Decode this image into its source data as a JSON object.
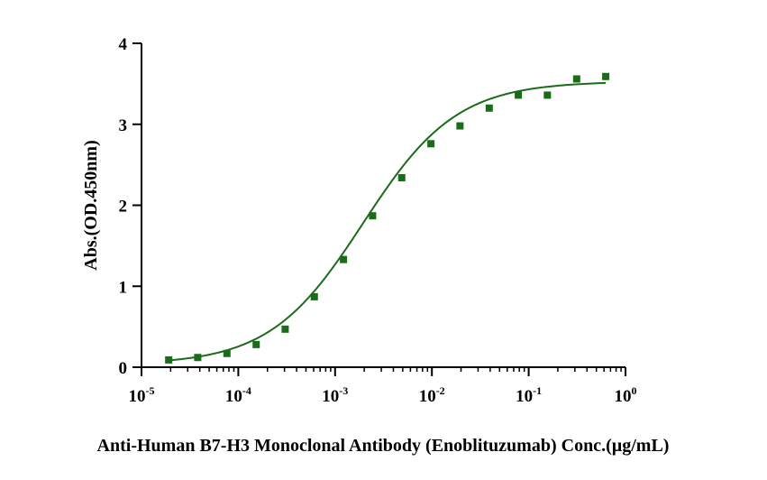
{
  "chart_data": {
    "type": "scatter",
    "title": "",
    "xlabel": "Anti-Human B7-H3 Monoclonal Antibody (Enoblituzumab) Conc.(µg/mL)",
    "ylabel": "Abs.(OD.450nm)",
    "xscale": "log10",
    "xlim_log10": [
      -5,
      0
    ],
    "ylim": [
      0,
      4
    ],
    "x_ticks": [
      {
        "base": "10",
        "exp": "-5"
      },
      {
        "base": "10",
        "exp": "-4"
      },
      {
        "base": "10",
        "exp": "-3"
      },
      {
        "base": "10",
        "exp": "-2"
      },
      {
        "base": "10",
        "exp": "-1"
      },
      {
        "base": "10",
        "exp": "0"
      }
    ],
    "y_ticks": [
      "0",
      "1",
      "2",
      "3",
      "4"
    ],
    "grid": false,
    "series": [
      {
        "name": "Enoblituzumab",
        "color": "#1a6b1a",
        "marker": "square",
        "x": [
          1.91e-05,
          3.81e-05,
          7.63e-05,
          0.000153,
          0.000305,
          0.00061,
          0.00122,
          0.00244,
          0.00488,
          0.00977,
          0.0195,
          0.0391,
          0.0781,
          0.156,
          0.313,
          0.625
        ],
        "y": [
          0.09,
          0.12,
          0.17,
          0.28,
          0.47,
          0.87,
          1.33,
          1.87,
          2.34,
          2.76,
          2.98,
          3.2,
          3.36,
          3.36,
          3.56,
          3.59
        ]
      }
    ],
    "fit": {
      "type": "4PL",
      "color": "#1a6b1a",
      "bottom": 0.03,
      "top": 3.53,
      "ec50": 0.00195,
      "hill": 0.9
    }
  }
}
